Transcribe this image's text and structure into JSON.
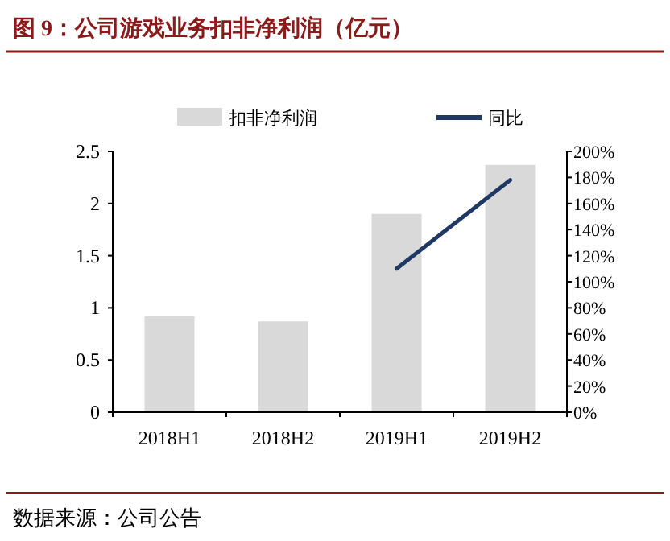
{
  "chart_data": {
    "type": "bar",
    "title": "图 9：公司游戏业务扣非净利润（亿元）",
    "annotations": [
      "数据来源：公司公告"
    ],
    "categories": [
      "2018H1",
      "2018H2",
      "2019H1",
      "2019H2"
    ],
    "series": [
      {
        "name": "扣非净利润",
        "color": "#d9d9d9",
        "values": [
          0.92,
          0.87,
          1.9,
          2.37
        ]
      },
      {
        "name": "同比",
        "type": "line",
        "axis": "y2",
        "color": "#1f3864",
        "values": [
          null,
          null,
          110,
          178
        ]
      }
    ],
    "ylim": [
      0,
      2.5
    ],
    "yticks": [
      0,
      0.5,
      1,
      1.5,
      2,
      2.5
    ],
    "y2lim": [
      0,
      200
    ],
    "y2ticks": [
      {
        "value": 0,
        "label": "0%"
      },
      {
        "value": 20,
        "label": "20%"
      },
      {
        "value": 40,
        "label": "40%"
      },
      {
        "value": 60,
        "label": "60%"
      },
      {
        "value": 80,
        "label": "80%"
      },
      {
        "value": 100,
        "label": "100%"
      },
      {
        "value": 120,
        "label": "120%"
      },
      {
        "value": 140,
        "label": "140%"
      },
      {
        "value": 160,
        "label": "160%"
      },
      {
        "value": 180,
        "label": "180%"
      },
      {
        "value": 200,
        "label": "200%"
      }
    ],
    "legend": "top",
    "grid": false
  }
}
